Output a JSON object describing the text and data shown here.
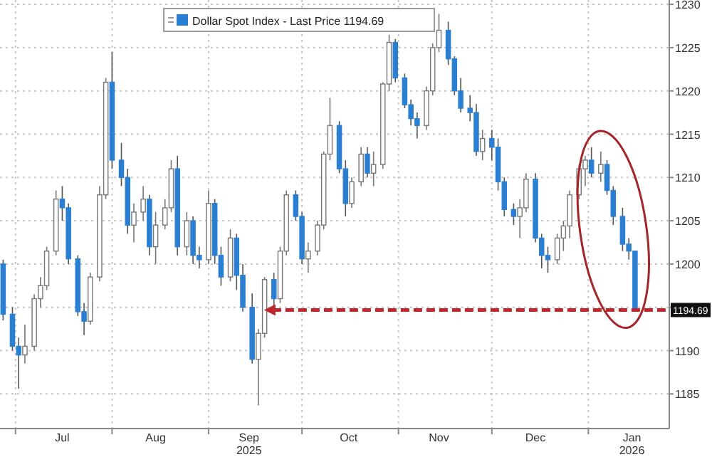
{
  "chart_data": {
    "type": "candlestick",
    "x": [
      "2025-06-27",
      "2025-06-30",
      "2025-07-02",
      "2025-07-04",
      "2025-07-07",
      "2025-07-09",
      "2025-07-11",
      "2025-07-14",
      "2025-07-16",
      "2025-07-18",
      "2025-07-21",
      "2025-07-23",
      "2025-07-25",
      "2025-07-28",
      "2025-07-30",
      "2025-08-01",
      "2025-08-04",
      "2025-08-06",
      "2025-08-08",
      "2025-08-11",
      "2025-08-13",
      "2025-08-15",
      "2025-08-18",
      "2025-08-20",
      "2025-08-22",
      "2025-08-25",
      "2025-08-27",
      "2025-08-29",
      "2025-09-01",
      "2025-09-03",
      "2025-09-05",
      "2025-09-08",
      "2025-09-10",
      "2025-09-12",
      "2025-09-15",
      "2025-09-17",
      "2025-09-19",
      "2025-09-22",
      "2025-09-24",
      "2025-09-26",
      "2025-09-29",
      "2025-10-01",
      "2025-10-03",
      "2025-10-06",
      "2025-10-08",
      "2025-10-10",
      "2025-10-13",
      "2025-10-15",
      "2025-10-17",
      "2025-10-20",
      "2025-10-22",
      "2025-10-24",
      "2025-10-27",
      "2025-10-29",
      "2025-10-31",
      "2025-11-03",
      "2025-11-05",
      "2025-11-07",
      "2025-11-10",
      "2025-11-12",
      "2025-11-14",
      "2025-11-17",
      "2025-11-19",
      "2025-11-21",
      "2025-11-24",
      "2025-11-26",
      "2025-11-28",
      "2025-12-01",
      "2025-12-03",
      "2025-12-05",
      "2025-12-08",
      "2025-12-10",
      "2025-12-12",
      "2025-12-15",
      "2025-12-17",
      "2025-12-19",
      "2025-12-22",
      "2025-12-24",
      "2025-12-26",
      "2025-12-29",
      "2025-12-31",
      "2026-01-02",
      "2026-01-05",
      "2026-01-07",
      "2026-01-09",
      "2026-01-12",
      "2026-01-14",
      "2026-01-16"
    ],
    "series": [
      {
        "name": "Dollar Spot Index - Last Price 1194.69",
        "color": "#2b7fd3",
        "colors": [
          "#2b7fd3",
          "#2b7fd3",
          "#2b7fd3",
          "#ffffff",
          "#ffffff",
          "#ffffff",
          "#ffffff",
          "#ffffff",
          "#2b7fd3",
          "#2b7fd3",
          "#2b7fd3",
          "#2b7fd3",
          "#ffffff",
          "#ffffff",
          "#ffffff",
          "#2b7fd3",
          "#2b7fd3",
          "#2b7fd3",
          "#ffffff",
          "#ffffff",
          "#2b7fd3",
          "#ffffff",
          "#ffffff",
          "#ffffff",
          "#2b7fd3",
          "#ffffff",
          "#2b7fd3",
          "#2b7fd3",
          "#ffffff",
          "#2b7fd3",
          "#2b7fd3",
          "#ffffff",
          "#2b7fd3",
          "#2b7fd3",
          "#2b7fd3",
          "#ffffff",
          "#ffffff",
          "#2b7fd3",
          "#ffffff",
          "#ffffff",
          "#2b7fd3",
          "#2b7fd3",
          "#ffffff",
          "#ffffff",
          "#ffffff",
          "#ffffff",
          "#2b7fd3",
          "#2b7fd3",
          "#ffffff",
          "#ffffff",
          "#2b7fd3",
          "#ffffff",
          "#ffffff",
          "#ffffff",
          "#2b7fd3",
          "#2b7fd3",
          "#2b7fd3",
          "#2b7fd3",
          "#ffffff",
          "#ffffff",
          "#ffffff",
          "#2b7fd3",
          "#2b7fd3",
          "#2b7fd3",
          "#2b7fd3",
          "#2b7fd3",
          "#ffffff",
          "#2b7fd3",
          "#2b7fd3",
          "#2b7fd3",
          "#2b7fd3",
          "#ffffff",
          "#ffffff",
          "#2b7fd3",
          "#2b7fd3",
          "#2b7fd3",
          "#ffffff",
          "#ffffff",
          "#ffffff",
          "#ffffff",
          "#ffffff",
          "#2b7fd3",
          "#ffffff",
          "#2b7fd3",
          "#2b7fd3",
          "#2b7fd3",
          "#2b7fd3",
          "#2b7fd3"
        ],
        "ohlc": [
          [
            1200,
            1200.5,
            1193.5,
            1194.2
          ],
          [
            1194.2,
            1195,
            1190,
            1190.5
          ],
          [
            1190.5,
            1191.5,
            1185.6,
            1189.5
          ],
          [
            1189.5,
            1193,
            1188.5,
            1190.5
          ],
          [
            1190.5,
            1196.5,
            1190,
            1196
          ],
          [
            1196,
            1198.5,
            1195,
            1197.5
          ],
          [
            1197.5,
            1202,
            1197,
            1201.5
          ],
          [
            1201.5,
            1208.5,
            1201,
            1207.5
          ],
          [
            1207.5,
            1209,
            1205,
            1206.5
          ],
          [
            1206.5,
            1207,
            1200,
            1200.6
          ],
          [
            1200.6,
            1201,
            1194,
            1194.5
          ],
          [
            1194.5,
            1195.5,
            1191.8,
            1193.4
          ],
          [
            1193.4,
            1199,
            1193,
            1198.5
          ],
          [
            1198.5,
            1209,
            1198,
            1208
          ],
          [
            1208,
            1221.5,
            1207.5,
            1221
          ],
          [
            1221,
            1224.5,
            1211,
            1212
          ],
          [
            1212,
            1214,
            1209,
            1210
          ],
          [
            1210,
            1211,
            1203.5,
            1204.5
          ],
          [
            1204.5,
            1207,
            1202.5,
            1206
          ],
          [
            1206,
            1209,
            1205,
            1207.5
          ],
          [
            1207.5,
            1208,
            1201,
            1202
          ],
          [
            1202,
            1206,
            1200,
            1204.5
          ],
          [
            1204.5,
            1207.5,
            1204,
            1206.5
          ],
          [
            1206.5,
            1212,
            1206,
            1211
          ],
          [
            1211,
            1212.5,
            1201,
            1202
          ],
          [
            1202,
            1206,
            1201,
            1205
          ],
          [
            1205,
            1205.5,
            1200,
            1201
          ],
          [
            1201,
            1202,
            1199.5,
            1200.5
          ],
          [
            1200.5,
            1208.5,
            1200,
            1207
          ],
          [
            1207,
            1207.5,
            1200,
            1201
          ],
          [
            1201,
            1202,
            1197.5,
            1198.5
          ],
          [
            1198.5,
            1204,
            1198,
            1203
          ],
          [
            1203,
            1203.5,
            1197,
            1198.7
          ],
          [
            1198.7,
            1200,
            1194.5,
            1195
          ],
          [
            1195,
            1196.6,
            1188.5,
            1189
          ],
          [
            1189,
            1192.5,
            1183.7,
            1192
          ],
          [
            1192,
            1198.5,
            1191.5,
            1198.2
          ],
          [
            1198.2,
            1199,
            1195,
            1196
          ],
          [
            1196,
            1202,
            1195.5,
            1201.5
          ],
          [
            1201.5,
            1208.5,
            1201,
            1208
          ],
          [
            1208,
            1208.5,
            1205,
            1205.5
          ],
          [
            1205.5,
            1206,
            1200,
            1200.6
          ],
          [
            1200.6,
            1202.5,
            1199,
            1201.5
          ],
          [
            1201.5,
            1205,
            1201,
            1204.5
          ],
          [
            1204.5,
            1213,
            1204,
            1212.7
          ],
          [
            1212.7,
            1219.2,
            1212,
            1216
          ],
          [
            1216,
            1216.5,
            1210.5,
            1211
          ],
          [
            1211,
            1212,
            1205.5,
            1207
          ],
          [
            1207,
            1210,
            1206.5,
            1209.5
          ],
          [
            1209.5,
            1213.5,
            1209,
            1212.7
          ],
          [
            1212.7,
            1213.5,
            1210,
            1210.5
          ],
          [
            1210.5,
            1213,
            1209,
            1211.5
          ],
          [
            1211.5,
            1221,
            1211,
            1220.8
          ],
          [
            1220.8,
            1226.5,
            1220,
            1225.6
          ],
          [
            1225.6,
            1226,
            1221,
            1221.5
          ],
          [
            1221.5,
            1222,
            1218,
            1218.4
          ],
          [
            1218.4,
            1219,
            1216,
            1216.8
          ],
          [
            1216.8,
            1217.5,
            1214.5,
            1216
          ],
          [
            1216,
            1220.5,
            1215.5,
            1220
          ],
          [
            1220,
            1225.5,
            1219.5,
            1225
          ],
          [
            1225,
            1228.9,
            1224.5,
            1227
          ],
          [
            1227,
            1228,
            1223,
            1223.7
          ],
          [
            1223.7,
            1224,
            1219.5,
            1220
          ],
          [
            1220,
            1221.5,
            1217.5,
            1218
          ],
          [
            1218,
            1219.5,
            1216.5,
            1217.5
          ],
          [
            1217.5,
            1218.5,
            1212.5,
            1213
          ],
          [
            1213,
            1215.5,
            1212,
            1214.5
          ],
          [
            1214.5,
            1215.5,
            1212,
            1213.5
          ],
          [
            1213.5,
            1214.5,
            1208.5,
            1209.5
          ],
          [
            1209.5,
            1210,
            1205.5,
            1206.3
          ],
          [
            1206.3,
            1207,
            1204.5,
            1205.5
          ],
          [
            1205.5,
            1207.5,
            1203,
            1206.5
          ],
          [
            1206.5,
            1210.5,
            1206,
            1209.8
          ],
          [
            1209.8,
            1210.5,
            1202.5,
            1203
          ],
          [
            1203,
            1203.5,
            1199.5,
            1201
          ],
          [
            1201,
            1202,
            1199,
            1200.5
          ],
          [
            1200.5,
            1203.5,
            1200,
            1203
          ],
          [
            1203,
            1205,
            1201.5,
            1204.4
          ],
          [
            1204.4,
            1208.5,
            1203,
            1208
          ],
          [
            1208,
            1211.5,
            1207.5,
            1211
          ],
          [
            1211,
            1212.5,
            1209,
            1212
          ],
          [
            1212,
            1213.5,
            1210,
            1210.5
          ],
          [
            1210.5,
            1213,
            1209.5,
            1211.5
          ],
          [
            1211.5,
            1212,
            1208,
            1208.5
          ],
          [
            1208.5,
            1209,
            1204.5,
            1205.5
          ],
          [
            1205.5,
            1206.5,
            1201.5,
            1202.3
          ],
          [
            1202.3,
            1203,
            1200.5,
            1201.5
          ],
          [
            1201.5,
            1201.5,
            1194.5,
            1194.69
          ]
        ]
      }
    ],
    "xlim": [
      "2025-06-26",
      "2026-01-27"
    ],
    "xticks": [
      {
        "value": "2025-07-01",
        "label": null
      },
      {
        "value": "2025-07-16",
        "label": "Jul"
      },
      {
        "value": "2025-08-01",
        "label": null
      },
      {
        "value": "2025-08-15",
        "label": "Aug"
      },
      {
        "value": "2025-09-01",
        "label": null
      },
      {
        "value": "2025-09-14",
        "label": "Sep\n2025"
      },
      {
        "value": "2025-10-01",
        "label": null
      },
      {
        "value": "2025-10-16",
        "label": "Oct"
      },
      {
        "value": "2025-11-01",
        "label": null
      },
      {
        "value": "2025-11-14",
        "label": "Nov"
      },
      {
        "value": "2025-12-01",
        "label": null
      },
      {
        "value": "2025-12-15",
        "label": "Dec"
      },
      {
        "value": "2026-01-01",
        "label": null
      },
      {
        "value": "2026-01-15",
        "label": "Jan\n2026"
      }
    ],
    "ylim": [
      1181,
      1230.5
    ],
    "yticks": [
      1185,
      1190,
      {
        "value": 1195,
        "label": null
      },
      1200,
      1205,
      1210,
      1215,
      1220,
      1225,
      1230
    ],
    "grid": true,
    "legend": "top",
    "ref_lines": [
      {
        "axis": "y",
        "value": 1194.69,
        "label": "1194.69",
        "color": "#c0282d",
        "line_style": "dashed"
      }
    ]
  }
}
